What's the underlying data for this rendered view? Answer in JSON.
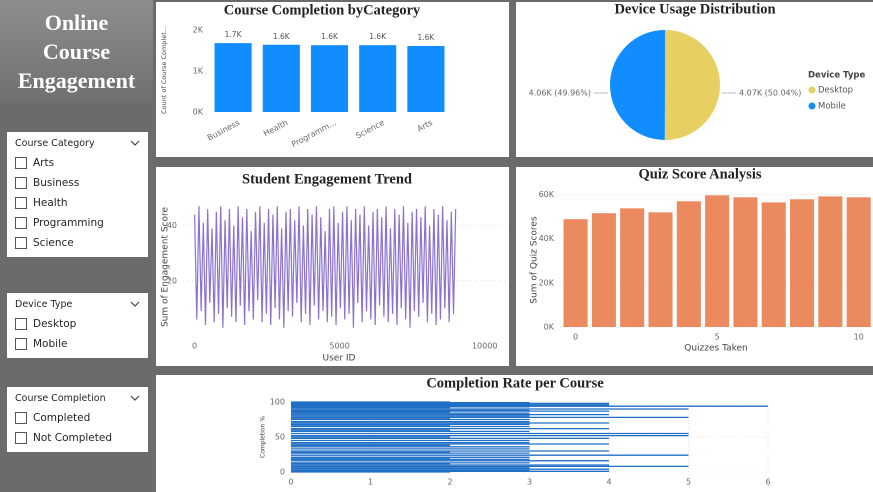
{
  "dashboard": {
    "title": "Online Course Engagement"
  },
  "slicers": [
    {
      "title": "Course Category",
      "items": [
        "Arts",
        "Business",
        "Health",
        "Programming",
        "Science"
      ]
    },
    {
      "title": "Device Type",
      "items": [
        "Desktop",
        "Mobile"
      ]
    },
    {
      "title": "Course Completion",
      "items": [
        "Completed",
        "Not Completed"
      ]
    }
  ],
  "chart_data": [
    {
      "type": "bar",
      "title": "Course Completion byCategory",
      "categories": [
        "Business",
        "Health",
        "Programm...",
        "Science",
        "Arts"
      ],
      "values": [
        1680,
        1640,
        1630,
        1630,
        1610
      ],
      "value_labels": [
        "1.7K",
        "1.6K",
        "1.6K",
        "1.6K",
        "1.6K"
      ],
      "color": "#118dff",
      "ylabel": "Count of Course Complet...",
      "ylim": [
        0,
        2000
      ],
      "yticks": [
        {
          "value": 0,
          "label": "0K"
        },
        {
          "value": 1000,
          "label": "1K"
        },
        {
          "value": 2000,
          "label": "2K"
        }
      ],
      "grid": false
    },
    {
      "type": "pie",
      "title": "Device Usage Distribution",
      "categories": [
        "Desktop",
        "Mobile"
      ],
      "values": [
        4070,
        4060
      ],
      "value_labels": [
        "4.07K (50.04%)",
        "4.06K (49.96%)"
      ],
      "colors": [
        "#e8cf62",
        "#118dff"
      ],
      "legend_title": "Device Type",
      "legend": "right"
    },
    {
      "type": "line",
      "title": "Student Engagement Trend",
      "xlabel": "User ID",
      "ylabel": "Sum of Engagement Score",
      "color": "#8b72d0",
      "x": [
        0,
        75,
        150,
        225,
        300,
        375,
        450,
        525,
        600,
        675,
        750,
        825,
        900,
        975,
        1050,
        1125,
        1200,
        1275,
        1350,
        1425,
        1500,
        1575,
        1650,
        1725,
        1800,
        1875,
        1950,
        2025,
        2100,
        2175,
        2250,
        2325,
        2400,
        2475,
        2550,
        2625,
        2700,
        2775,
        2850,
        2925,
        3000,
        3075,
        3150,
        3225,
        3300,
        3375,
        3450,
        3525,
        3600,
        3675,
        3750,
        3825,
        3900,
        3975,
        4050,
        4125,
        4200,
        4275,
        4350,
        4425,
        4500,
        4575,
        4650,
        4725,
        4800,
        4875,
        4950,
        5025,
        5100,
        5175,
        5250,
        5325,
        5400,
        5475,
        5550,
        5625,
        5700,
        5775,
        5850,
        5925,
        6000,
        6075,
        6150,
        6225,
        6300,
        6375,
        6450,
        6525,
        6600,
        6675,
        6750,
        6825,
        6900,
        6975,
        7050,
        7125,
        7200,
        7275,
        7350,
        7425,
        7500,
        7575,
        7650,
        7725,
        7800,
        7875,
        7950,
        8025,
        8100,
        8175,
        8250,
        8325,
        8400,
        8475,
        8550,
        8625,
        8700,
        8775,
        8850,
        8925,
        9000
      ],
      "values": [
        44,
        6,
        47,
        9,
        41,
        4,
        46,
        12,
        39,
        5,
        45,
        8,
        47,
        3,
        42,
        10,
        46,
        7,
        40,
        5,
        47,
        11,
        43,
        4,
        46,
        9,
        38,
        6,
        45,
        13,
        47,
        5,
        41,
        8,
        46,
        4,
        44,
        10,
        47,
        6,
        39,
        3,
        45,
        9,
        46,
        7,
        42,
        12,
        47,
        5,
        40,
        8,
        46,
        4,
        44,
        11,
        47,
        6,
        43,
        9,
        38,
        5,
        46,
        7,
        47,
        4,
        41,
        10,
        45,
        6,
        47,
        8,
        42,
        3,
        46,
        12,
        44,
        5,
        47,
        9,
        40,
        6,
        45,
        4,
        46,
        11,
        43,
        7,
        47,
        5,
        39,
        8,
        46,
        4,
        44,
        10,
        47,
        6,
        41,
        3,
        45,
        9,
        46,
        7,
        43,
        12,
        47,
        5,
        40,
        8,
        46,
        4,
        44,
        6,
        47,
        10,
        42,
        5,
        45,
        8,
        46
      ],
      "xlim": [
        -400,
        10700
      ],
      "xticks": [
        0,
        5000,
        10000
      ],
      "ylim": [
        0,
        50
      ],
      "yticks": [
        20,
        40
      ],
      "grid": true
    },
    {
      "type": "bar",
      "title": "Quiz Score Analysis",
      "xlabel": "Quizzes Taken",
      "ylabel": "Sum of Quiz Scores",
      "color": "#eb895f",
      "x": [
        0,
        1,
        2,
        3,
        4,
        5,
        6,
        7,
        8,
        9,
        10
      ],
      "values": [
        48800,
        51500,
        53700,
        51900,
        56900,
        59600,
        58700,
        56400,
        57800,
        59100,
        58700
      ],
      "xlim": [
        -0.55,
        10.4
      ],
      "xticks": [
        0,
        5,
        10
      ],
      "ylim": [
        0,
        62000
      ],
      "yticks": [
        {
          "value": 0,
          "label": "0K"
        },
        {
          "value": 20000,
          "label": "20K"
        },
        {
          "value": 40000,
          "label": "40K"
        },
        {
          "value": 60000,
          "label": "60K"
        }
      ],
      "grid": true
    },
    {
      "type": "line",
      "title": "Completion Rate per Course",
      "ylabel": "Completion %",
      "color": "#1f6fc5",
      "x": [
        0,
        6,
        6,
        0,
        5,
        5,
        0,
        5,
        5,
        0,
        5,
        5,
        0,
        5,
        5,
        0,
        5,
        5,
        0,
        5,
        5,
        0,
        4,
        4,
        0,
        4,
        4,
        0,
        4,
        4,
        0,
        4,
        4,
        0,
        4,
        4,
        0,
        4,
        4,
        0,
        4,
        4,
        0,
        4,
        4,
        0,
        4,
        4,
        0,
        4,
        4,
        0,
        4,
        4,
        0,
        4,
        4,
        0,
        4,
        4,
        0,
        3,
        3,
        0,
        3,
        3,
        0,
        3,
        3,
        0,
        3,
        3,
        0,
        3,
        3,
        0,
        3,
        3,
        0,
        3,
        3,
        0,
        3,
        3,
        0,
        3,
        3,
        0,
        3,
        3,
        0,
        3,
        3,
        0,
        3,
        3,
        0,
        3,
        3,
        0,
        3,
        3,
        0,
        3,
        3,
        0,
        3,
        3,
        0,
        3,
        3,
        0,
        3,
        3,
        0,
        3,
        3,
        0,
        3,
        3,
        0,
        3,
        3,
        0,
        2,
        2,
        0,
        2,
        2,
        0,
        2,
        2,
        0,
        2,
        2,
        0,
        2,
        2,
        0,
        2,
        2,
        0,
        2,
        2,
        0,
        2,
        2,
        0,
        2,
        2,
        0,
        2,
        2,
        0,
        2,
        2,
        0,
        2
      ],
      "values": [
        94,
        94,
        null,
        90,
        90,
        null,
        78,
        78,
        null,
        55,
        55,
        null,
        52,
        52,
        null,
        24,
        24,
        null,
        8,
        8,
        null,
        98,
        98,
        null,
        96,
        96,
        null,
        87,
        87,
        null,
        82,
        82,
        null,
        70,
        70,
        null,
        62,
        62,
        null,
        48,
        48,
        null,
        40,
        40,
        null,
        30,
        30,
        null,
        16,
        16,
        null,
        10,
        10,
        null,
        4,
        4,
        null,
        1,
        1,
        null,
        99,
        99,
        null,
        97,
        97,
        null,
        93,
        93,
        null,
        88,
        88,
        null,
        84,
        84,
        null,
        80,
        80,
        null,
        75,
        75,
        null,
        72,
        72,
        null,
        68,
        68,
        null,
        65,
        65,
        null,
        58,
        58,
        null,
        45,
        45,
        null,
        42,
        42,
        null,
        36,
        36,
        null,
        33,
        33,
        null,
        27,
        27,
        null,
        21,
        21,
        null,
        18,
        18,
        null,
        13,
        13,
        null,
        6,
        6,
        null,
        2,
        2,
        null,
        100,
        100,
        null,
        92,
        92,
        null,
        86,
        86,
        null,
        76,
        76,
        null,
        66,
        66,
        null,
        60,
        60,
        null,
        50,
        50,
        null,
        38,
        38,
        null,
        28,
        28,
        null,
        20,
        20,
        null,
        12,
        12,
        null,
        0,
        0
      ],
      "xlim": [
        0,
        6
      ],
      "xticks": [
        0,
        1,
        2,
        3,
        4,
        5,
        6
      ],
      "ylim": [
        0,
        100
      ],
      "yticks": [
        0,
        50,
        100
      ],
      "grid": true,
      "xgrid": true
    }
  ]
}
